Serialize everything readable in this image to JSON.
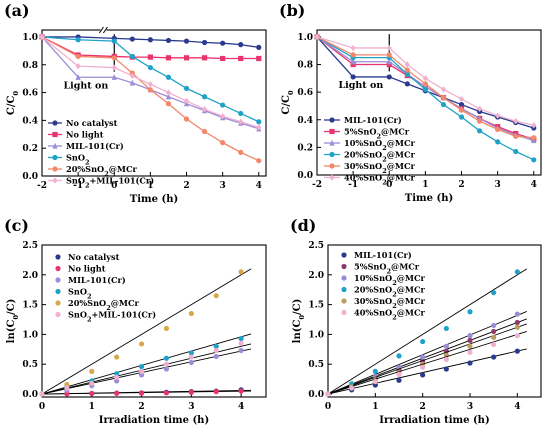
{
  "figure": {
    "panels": [
      "(a)",
      "(b)",
      "(c)",
      "(d)"
    ]
  },
  "chart_data": [
    {
      "label": "(a)",
      "type": "line",
      "xlabel": "Time (h)",
      "ylabel": "C/C0",
      "xlim": [
        -2,
        4.2
      ],
      "ylim": [
        0,
        1.05
      ],
      "xticks": [
        -2,
        -1,
        0,
        1,
        2,
        3,
        4
      ],
      "yticks": [
        0.0,
        0.2,
        0.4,
        0.6,
        0.8,
        1.0
      ],
      "axis_break_at_x": -0.3,
      "annotation": "Light on",
      "legend": "center-left",
      "series": [
        {
          "name": "No catalyst",
          "color": "#2a3b8f",
          "marker": "circle",
          "x": [
            -2,
            -1,
            0,
            0.5,
            1,
            1.5,
            2,
            2.5,
            3,
            3.5,
            4
          ],
          "y": [
            1.0,
            1.0,
            0.99,
            0.985,
            0.98,
            0.975,
            0.97,
            0.96,
            0.955,
            0.945,
            0.925
          ]
        },
        {
          "name": "No light",
          "color": "#e8336b",
          "marker": "square",
          "x": [
            -2,
            -1,
            0,
            0.5,
            1,
            1.5,
            2,
            2.5,
            3,
            3.5,
            4
          ],
          "y": [
            1.0,
            0.87,
            0.86,
            0.855,
            0.855,
            0.85,
            0.85,
            0.85,
            0.845,
            0.845,
            0.845
          ]
        },
        {
          "name": "MIL-101(Cr)",
          "color": "#9b8dd6",
          "marker": "triangle",
          "x": [
            -2,
            -1,
            0,
            0.5,
            1,
            1.5,
            2,
            2.5,
            3,
            3.5,
            4
          ],
          "y": [
            1.0,
            0.71,
            0.71,
            0.67,
            0.62,
            0.57,
            0.52,
            0.47,
            0.42,
            0.38,
            0.34
          ]
        },
        {
          "name": "SnO2",
          "color": "#1fa2c8",
          "marker": "circle",
          "x": [
            -2,
            -1,
            0,
            0.5,
            1,
            1.5,
            2,
            2.5,
            3,
            3.5,
            4
          ],
          "y": [
            1.0,
            0.98,
            0.97,
            0.86,
            0.78,
            0.71,
            0.63,
            0.57,
            0.51,
            0.45,
            0.39
          ]
        },
        {
          "name": "20%SnO2@MCr",
          "color": "#f2876a",
          "marker": "circle",
          "x": [
            -2,
            -1,
            0,
            0.5,
            1,
            1.5,
            2,
            2.5,
            3,
            3.5,
            4
          ],
          "y": [
            1.0,
            0.86,
            0.85,
            0.74,
            0.62,
            0.52,
            0.41,
            0.32,
            0.24,
            0.17,
            0.11
          ]
        },
        {
          "name": "SnO2+MIL-101(Cr)",
          "color": "#f0b0d0",
          "marker": "diamond",
          "x": [
            -2,
            -1,
            0,
            0.5,
            1,
            1.5,
            2,
            2.5,
            3,
            3.5,
            4
          ],
          "y": [
            1.0,
            0.79,
            0.78,
            0.72,
            0.66,
            0.6,
            0.54,
            0.48,
            0.43,
            0.39,
            0.35
          ]
        }
      ]
    },
    {
      "label": "(b)",
      "type": "line",
      "xlabel": "Time (h)",
      "ylabel": "C/C0",
      "xlim": [
        -2,
        4.2
      ],
      "ylim": [
        0,
        1.05
      ],
      "xticks": [
        -2,
        -1,
        0,
        1,
        2,
        3,
        4
      ],
      "yticks": [
        0.0,
        0.2,
        0.4,
        0.6,
        0.8,
        1.0
      ],
      "annotation": "Light on",
      "legend": "lower-left",
      "series": [
        {
          "name": "MIL-101(Cr)",
          "color": "#2a3b8f",
          "marker": "circle",
          "x": [
            -2,
            -1,
            0,
            0.5,
            1,
            1.5,
            2,
            2.5,
            3,
            3.5,
            4
          ],
          "y": [
            1.0,
            0.71,
            0.71,
            0.66,
            0.61,
            0.56,
            0.51,
            0.46,
            0.42,
            0.38,
            0.34
          ]
        },
        {
          "name": "5%SnO2@MCr",
          "color": "#e8336b",
          "marker": "square",
          "x": [
            -2,
            -1,
            0,
            0.5,
            1,
            1.5,
            2,
            2.5,
            3,
            3.5,
            4
          ],
          "y": [
            1.0,
            0.8,
            0.8,
            0.72,
            0.64,
            0.56,
            0.48,
            0.41,
            0.35,
            0.3,
            0.26
          ]
        },
        {
          "name": "10%SnO2@MCr",
          "color": "#9b8dd6",
          "marker": "triangle",
          "x": [
            -2,
            -1,
            0,
            0.5,
            1,
            1.5,
            2,
            2.5,
            3,
            3.5,
            4
          ],
          "y": [
            1.0,
            0.82,
            0.82,
            0.73,
            0.64,
            0.56,
            0.48,
            0.41,
            0.34,
            0.29,
            0.25
          ]
        },
        {
          "name": "20%SnO2@MCr",
          "color": "#1fa2c8",
          "marker": "circle",
          "x": [
            -2,
            -1,
            0,
            0.5,
            1,
            1.5,
            2,
            2.5,
            3,
            3.5,
            4
          ],
          "y": [
            1.0,
            0.85,
            0.85,
            0.73,
            0.62,
            0.51,
            0.42,
            0.32,
            0.24,
            0.17,
            0.11
          ]
        },
        {
          "name": "30%SnO2@MCr",
          "color": "#f2876a",
          "marker": "circle",
          "x": [
            -2,
            -1,
            0,
            0.5,
            1,
            1.5,
            2,
            2.5,
            3,
            3.5,
            4
          ],
          "y": [
            1.0,
            0.87,
            0.87,
            0.76,
            0.66,
            0.56,
            0.47,
            0.39,
            0.33,
            0.28,
            0.27
          ]
        },
        {
          "name": "40%SnO2@MCr",
          "color": "#f0b0d0",
          "marker": "diamond",
          "x": [
            -2,
            -1,
            0,
            0.5,
            1,
            1.5,
            2,
            2.5,
            3,
            3.5,
            4
          ],
          "y": [
            1.0,
            0.92,
            0.92,
            0.8,
            0.7,
            0.62,
            0.55,
            0.48,
            0.43,
            0.39,
            0.36
          ]
        }
      ]
    },
    {
      "label": "(c)",
      "type": "scatter",
      "xlabel": "Irradiation time (h)",
      "ylabel": "ln(C0/C)",
      "xlim": [
        0,
        4.5
      ],
      "ylim": [
        -0.05,
        2.5
      ],
      "xticks": [
        0,
        1,
        2,
        3,
        4
      ],
      "yticks": [
        0.0,
        0.5,
        1.0,
        1.5,
        2.0,
        2.5
      ],
      "legend": "top-left",
      "series": [
        {
          "name": "No catalyst",
          "color": "#2a3b8f",
          "marker": "circle",
          "slope": 0.015,
          "x": [
            0,
            0.5,
            1,
            1.5,
            2,
            2.5,
            3,
            3.5,
            4
          ],
          "y": [
            0,
            0.005,
            0.01,
            0.015,
            0.02,
            0.03,
            0.04,
            0.05,
            0.07
          ]
        },
        {
          "name": "No light",
          "color": "#e8336b",
          "marker": "circle",
          "slope": 0.012,
          "x": [
            0,
            0.5,
            1,
            1.5,
            2,
            2.5,
            3,
            3.5,
            4
          ],
          "y": [
            0,
            0.006,
            0.01,
            0.012,
            0.015,
            0.02,
            0.03,
            0.04,
            0.05
          ]
        },
        {
          "name": "MIL-101(Cr)",
          "color": "#9b8dd6",
          "marker": "circle",
          "slope": 0.18,
          "x": [
            0,
            0.5,
            1,
            1.5,
            2,
            2.5,
            3,
            3.5,
            4
          ],
          "y": [
            0,
            0.06,
            0.14,
            0.22,
            0.32,
            0.42,
            0.53,
            0.63,
            0.73
          ]
        },
        {
          "name": "SnO2",
          "color": "#1fa2c8",
          "marker": "circle",
          "slope": 0.24,
          "x": [
            0,
            0.5,
            1,
            1.5,
            2,
            2.5,
            3,
            3.5,
            4
          ],
          "y": [
            0,
            0.12,
            0.22,
            0.34,
            0.46,
            0.6,
            0.69,
            0.8,
            0.93
          ]
        },
        {
          "name": "20%SnO2@MCr",
          "color": "#d9a84a",
          "marker": "circle",
          "slope": 0.5,
          "x": [
            0,
            0.5,
            1,
            1.5,
            2,
            2.5,
            3,
            3.5,
            4
          ],
          "y": [
            0,
            0.16,
            0.38,
            0.62,
            0.84,
            1.1,
            1.35,
            1.65,
            2.05
          ]
        },
        {
          "name": "SnO2+MIL-101(Cr)",
          "color": "#f0b0d0",
          "marker": "circle",
          "slope": 0.2,
          "x": [
            0,
            0.5,
            1,
            1.5,
            2,
            2.5,
            3,
            3.5,
            4
          ],
          "y": [
            0,
            0.1,
            0.18,
            0.28,
            0.38,
            0.5,
            0.62,
            0.73,
            0.85
          ]
        }
      ]
    },
    {
      "label": "(d)",
      "type": "scatter",
      "xlabel": "Irradiation time (h)",
      "ylabel": "ln(C0/C)",
      "xlim": [
        0,
        4.5
      ],
      "ylim": [
        -0.05,
        2.5
      ],
      "xticks": [
        0,
        1,
        2,
        3,
        4
      ],
      "yticks": [
        0.0,
        0.5,
        1.0,
        1.5,
        2.0,
        2.5
      ],
      "legend": "top-left",
      "series": [
        {
          "name": "MIL-101(Cr)",
          "color": "#2a3b8f",
          "marker": "circle",
          "slope": 0.18,
          "x": [
            0,
            0.5,
            1,
            1.5,
            2,
            2.5,
            3,
            3.5,
            4
          ],
          "y": [
            0,
            0.07,
            0.15,
            0.23,
            0.32,
            0.42,
            0.52,
            0.62,
            0.72
          ]
        },
        {
          "name": "5%SnO2@MCr",
          "color": "#8e3a6a",
          "marker": "circle",
          "slope": 0.3,
          "x": [
            0,
            0.5,
            1,
            1.5,
            2,
            2.5,
            3,
            3.5,
            4
          ],
          "y": [
            0,
            0.13,
            0.26,
            0.4,
            0.55,
            0.72,
            0.9,
            1.05,
            1.2
          ]
        },
        {
          "name": "10%SnO2@MCr",
          "color": "#9b8dd6",
          "marker": "circle",
          "slope": 0.33,
          "x": [
            0,
            0.5,
            1,
            1.5,
            2,
            2.5,
            3,
            3.5,
            4
          ],
          "y": [
            0,
            0.14,
            0.29,
            0.45,
            0.62,
            0.8,
            0.98,
            1.15,
            1.34
          ]
        },
        {
          "name": "20%SnO2@MCr",
          "color": "#1fa2c8",
          "marker": "circle",
          "slope": 0.5,
          "x": [
            0,
            0.5,
            1,
            1.5,
            2,
            2.5,
            3,
            3.5,
            4
          ],
          "y": [
            0,
            0.17,
            0.38,
            0.64,
            0.88,
            1.1,
            1.38,
            1.7,
            2.05
          ]
        },
        {
          "name": "30%SnO2@MCr",
          "color": "#b9a060",
          "marker": "circle",
          "slope": 0.28,
          "x": [
            0,
            0.5,
            1,
            1.5,
            2,
            2.5,
            3,
            3.5,
            4
          ],
          "y": [
            0,
            0.12,
            0.24,
            0.36,
            0.5,
            0.65,
            0.8,
            0.95,
            1.12
          ]
        },
        {
          "name": "40%SnO2@MCr",
          "color": "#f0b0d0",
          "marker": "circle",
          "slope": 0.25,
          "x": [
            0,
            0.5,
            1,
            1.5,
            2,
            2.5,
            3,
            3.5,
            4
          ],
          "y": [
            0,
            0.1,
            0.21,
            0.33,
            0.45,
            0.58,
            0.7,
            0.83,
            0.98
          ]
        }
      ]
    }
  ]
}
